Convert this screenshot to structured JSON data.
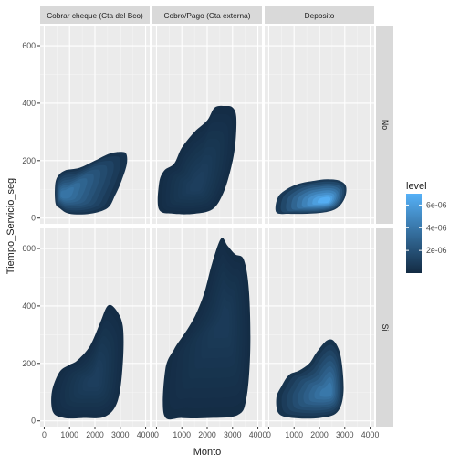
{
  "chart_data": {
    "type": "heatmap",
    "subtype": "faceted 2D density (filled contours)",
    "xlabel": "Monto",
    "ylabel": "Tiempo_Servicio_seg",
    "xlim": [
      0,
      4000
    ],
    "ylim": [
      0,
      650
    ],
    "x_ticks": [
      0,
      1000,
      2000,
      3000,
      4000
    ],
    "x_tick_labels": [
      "0",
      "1000",
      "2000",
      "3000",
      "4000"
    ],
    "y_ticks": [
      0,
      200,
      400,
      600
    ],
    "y_tick_labels": [
      "0",
      "200",
      "400",
      "600"
    ],
    "grid": true,
    "facet_columns": [
      "Cobrar cheque (Cta del Bco)",
      "Cobro/Pago (Cta externa)",
      "Deposito"
    ],
    "facet_rows": [
      "No",
      "Si"
    ],
    "legend": {
      "title": "level",
      "position": "right",
      "ticks": [
        2e-06,
        4e-06,
        6e-06
      ],
      "tick_labels": [
        "2e-06",
        "4e-06",
        "6e-06"
      ],
      "range": [
        0,
        7e-06
      ],
      "color_low": "#132B43",
      "color_high": "#56B1F7"
    },
    "panels": [
      {
        "col": 0,
        "row": 0,
        "outline": [
          [
            600,
            35
          ],
          [
            450,
            50
          ],
          [
            420,
            100
          ],
          [
            500,
            140
          ],
          [
            800,
            165
          ],
          [
            1400,
            175
          ],
          [
            2000,
            200
          ],
          [
            2600,
            225
          ],
          [
            3100,
            230
          ],
          [
            3250,
            220
          ],
          [
            3250,
            185
          ],
          [
            3050,
            130
          ],
          [
            2800,
            80
          ],
          [
            2500,
            35
          ],
          [
            1800,
            15
          ],
          [
            1000,
            15
          ]
        ],
        "peak": [
          700,
          80
        ],
        "peak_level": 3.8e-06
      },
      {
        "col": 1,
        "row": 0,
        "outline": [
          [
            100,
            30
          ],
          [
            100,
            120
          ],
          [
            300,
            165
          ],
          [
            700,
            190
          ],
          [
            1000,
            245
          ],
          [
            1500,
            300
          ],
          [
            2000,
            340
          ],
          [
            2300,
            385
          ],
          [
            2700,
            390
          ],
          [
            3000,
            385
          ],
          [
            3150,
            350
          ],
          [
            3100,
            250
          ],
          [
            2900,
            160
          ],
          [
            2600,
            80
          ],
          [
            2200,
            30
          ],
          [
            1500,
            15
          ],
          [
            700,
            15
          ]
        ],
        "peak": [
          1600,
          110
        ],
        "peak_level": 1e-06
      },
      {
        "col": 2,
        "row": 0,
        "outline": [
          [
            300,
            20
          ],
          [
            350,
            70
          ],
          [
            700,
            100
          ],
          [
            1200,
            120
          ],
          [
            1800,
            130
          ],
          [
            2300,
            135
          ],
          [
            2800,
            130
          ],
          [
            3050,
            110
          ],
          [
            3000,
            70
          ],
          [
            2700,
            35
          ],
          [
            2200,
            20
          ],
          [
            1500,
            15
          ],
          [
            800,
            15
          ]
        ],
        "peak": [
          2300,
          60
        ],
        "peak_level": 6.8e-06
      },
      {
        "col": 0,
        "row": 1,
        "outline": [
          [
            350,
            30
          ],
          [
            300,
            100
          ],
          [
            600,
            170
          ],
          [
            1000,
            195
          ],
          [
            1300,
            210
          ],
          [
            1800,
            260
          ],
          [
            2200,
            340
          ],
          [
            2500,
            400
          ],
          [
            2800,
            390
          ],
          [
            3100,
            330
          ],
          [
            3100,
            200
          ],
          [
            2900,
            70
          ],
          [
            2400,
            15
          ],
          [
            1500,
            10
          ],
          [
            800,
            10
          ]
        ],
        "peak": [
          2000,
          140
        ],
        "peak_level": 1e-06
      },
      {
        "col": 1,
        "row": 1,
        "outline": [
          [
            300,
            20
          ],
          [
            350,
            180
          ],
          [
            700,
            250
          ],
          [
            1000,
            290
          ],
          [
            1300,
            330
          ],
          [
            1600,
            380
          ],
          [
            1900,
            450
          ],
          [
            2200,
            550
          ],
          [
            2550,
            635
          ],
          [
            2800,
            610
          ],
          [
            3100,
            580
          ],
          [
            3450,
            560
          ],
          [
            3650,
            450
          ],
          [
            3700,
            250
          ],
          [
            3550,
            80
          ],
          [
            3200,
            20
          ],
          [
            2000,
            10
          ],
          [
            1000,
            10
          ]
        ],
        "peak": [
          2700,
          350
        ],
        "peak_level": 8e-07
      },
      {
        "col": 2,
        "row": 1,
        "outline": [
          [
            400,
            25
          ],
          [
            300,
            80
          ],
          [
            500,
            120
          ],
          [
            800,
            160
          ],
          [
            1200,
            175
          ],
          [
            1600,
            200
          ],
          [
            1900,
            240
          ],
          [
            2300,
            280
          ],
          [
            2600,
            275
          ],
          [
            2850,
            220
          ],
          [
            2950,
            100
          ],
          [
            2700,
            30
          ],
          [
            2000,
            10
          ],
          [
            1000,
            10
          ]
        ],
        "peak": [
          2400,
          100
        ],
        "peak_level": 4e-06
      }
    ]
  }
}
